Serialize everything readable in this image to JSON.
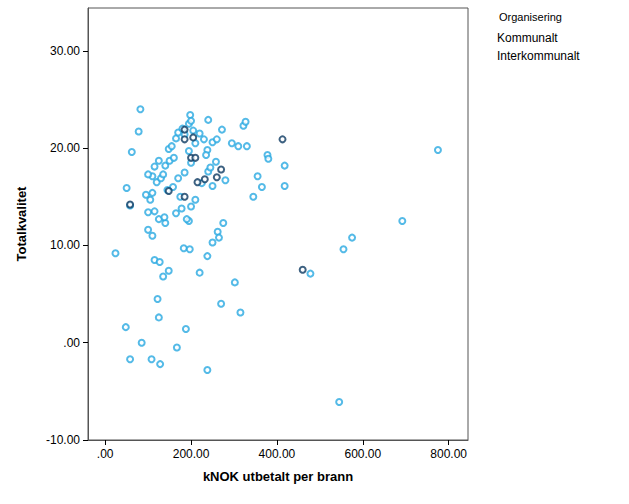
{
  "chart_data": {
    "type": "scatter",
    "x_label": "kNOK utbetalt per brann",
    "y_label": "Totalkvalitet",
    "legend_title": "Organisering",
    "legend": "top-right",
    "grid": false,
    "marker": "emptyCircle",
    "xlim": [
      -40,
      845
    ],
    "ylim": [
      -10,
      34.4
    ],
    "xticks": [
      {
        "value": 0,
        "label": ".00"
      },
      {
        "value": 200,
        "label": "200.00"
      },
      {
        "value": 400,
        "label": "400.00"
      },
      {
        "value": 600,
        "label": "600.00"
      },
      {
        "value": 800,
        "label": "800.00"
      }
    ],
    "yticks": [
      {
        "value": -10,
        "label": "-10.00"
      },
      {
        "value": 0,
        "label": ".00"
      },
      {
        "value": 10,
        "label": "10.00"
      },
      {
        "value": 20,
        "label": "20.00"
      },
      {
        "value": 30,
        "label": "30.00"
      }
    ],
    "series": [
      {
        "name": "Kommunalt",
        "color": "#29a9e1",
        "x": [
          82,
          78,
          62,
          50,
          58,
          24,
          48,
          58,
          85,
          108,
          128,
          167,
          238,
          125,
          122,
          188,
          115,
          127,
          135,
          148,
          183,
          197,
          220,
          238,
          250,
          262,
          265,
          275,
          270,
          302,
          315,
          100,
          115,
          100,
          105,
          125,
          140,
          138,
          165,
          178,
          195,
          190,
          200,
          210,
          95,
          110,
          120,
          130,
          145,
          158,
          170,
          110,
          100,
          115,
          125,
          140,
          150,
          148,
          155,
          165,
          170,
          180,
          185,
          195,
          198,
          200,
          205,
          195,
          210,
          220,
          230,
          240,
          250,
          260,
          272,
          258,
          240,
          250,
          225,
          238,
          245,
          280,
          295,
          310,
          322,
          327,
          330,
          345,
          355,
          365,
          378,
          380,
          418,
          418,
          200,
          185,
          160,
          175,
          555,
          575,
          478,
          692,
          775,
          545,
          235,
          135,
          110
        ],
        "values": [
          24.0,
          21.7,
          19.6,
          15.9,
          14.1,
          9.2,
          1.6,
          -1.7,
          0.0,
          -1.7,
          -2.2,
          -0.5,
          -2.8,
          2.6,
          4.5,
          1.4,
          8.5,
          8.3,
          6.8,
          7.4,
          9.7,
          9.6,
          7.2,
          8.9,
          10.3,
          11.4,
          10.8,
          12.3,
          4.0,
          6.2,
          3.1,
          11.6,
          13.5,
          13.4,
          14.7,
          12.7,
          12.3,
          12.9,
          13.3,
          13.8,
          12.5,
          12.7,
          14.0,
          14.7,
          15.2,
          15.4,
          16.5,
          16.9,
          15.7,
          16.0,
          16.9,
          17.1,
          17.3,
          18.1,
          18.7,
          18.2,
          18.7,
          19.9,
          20.2,
          21.0,
          21.6,
          22.0,
          21.4,
          22.5,
          23.4,
          22.8,
          21.8,
          19.7,
          20.5,
          21.5,
          20.9,
          22.9,
          20.6,
          20.9,
          21.9,
          18.6,
          17.6,
          16.1,
          16.4,
          19.8,
          18.0,
          16.7,
          20.5,
          20.2,
          22.3,
          22.7,
          20.2,
          15.0,
          17.1,
          16.0,
          19.3,
          18.9,
          18.2,
          16.1,
          18.5,
          17.5,
          19.0,
          15.0,
          9.6,
          10.8,
          7.1,
          12.5,
          19.8,
          -6.1,
          19.3,
          17.3,
          11.0
        ]
      },
      {
        "name": "Interkommunalt",
        "color": "#0c3a62",
        "x": [
          58,
          148,
          185,
          185,
          205,
          200,
          210,
          185,
          215,
          232,
          260,
          270,
          413,
          460
        ],
        "values": [
          14.2,
          15.6,
          21.9,
          20.9,
          21.1,
          19.0,
          19.0,
          15.0,
          16.5,
          16.8,
          17.0,
          17.8,
          20.9,
          7.5
        ]
      }
    ]
  }
}
